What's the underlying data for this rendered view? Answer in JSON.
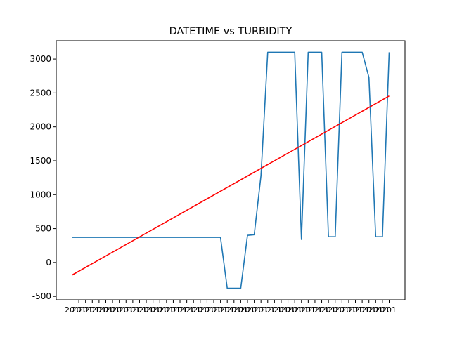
{
  "chart_data": {
    "type": "line",
    "title": "DATETIME vs TURBIDITY",
    "xlabel": "",
    "ylabel": "",
    "ylim": [
      -550,
      3270
    ],
    "yticks": [
      -500,
      0,
      500,
      1000,
      1500,
      2000,
      2500,
      3000
    ],
    "x_count": 48,
    "x_tick_label_prefix": "201",
    "grid": false,
    "series": [
      {
        "color": "#1f77b4",
        "values": [
          370,
          370,
          370,
          370,
          370,
          370,
          370,
          370,
          370,
          370,
          370,
          370,
          370,
          370,
          370,
          370,
          370,
          370,
          370,
          370,
          370,
          370,
          370,
          -380,
          -380,
          -380,
          400,
          410,
          1280,
          3100,
          3100,
          3100,
          3100,
          3100,
          340,
          3100,
          3100,
          3100,
          380,
          380,
          3100,
          3100,
          3100,
          3100,
          2730,
          380,
          380,
          3100
        ]
      },
      {
        "color": "#ff0000",
        "values_start": -185,
        "values_end": 2455
      }
    ]
  }
}
